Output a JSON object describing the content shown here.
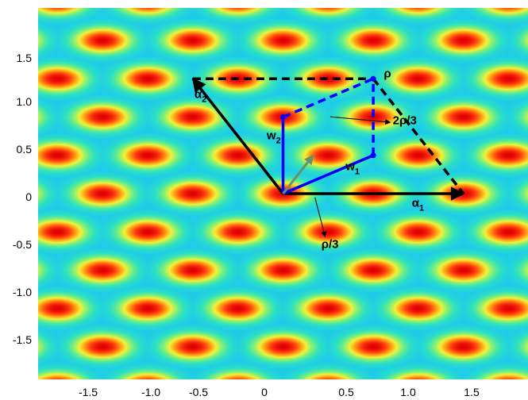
{
  "chart_data": {
    "type": "heatmap",
    "title": "",
    "xlabel": "",
    "ylabel": "",
    "xlim": [
      -1.92,
      1.92
    ],
    "ylim": [
      -1.98,
      1.98
    ],
    "grid": false,
    "x_ticks": [
      "-1.5",
      "-1.0",
      "-0.5",
      "0",
      "0.5",
      "1.0",
      "1.5"
    ],
    "y_ticks": [
      "1.5",
      "1.0",
      "0.5",
      "0",
      "-0.5",
      "-1.0",
      "-1.5"
    ],
    "colormap": [
      "#1cc7f2",
      "#2be0c4",
      "#7cf07a",
      "#f2f23a",
      "#ff9a12",
      "#ff3a10",
      "#e00000"
    ],
    "field": {
      "lattice_spacing_x": 0.707,
      "lattice_spacing_y": 0.4082,
      "lattice_offset_x": 0.3535
    },
    "vectors": [
      {
        "id": "alpha1",
        "from": [
          0,
          0
        ],
        "to": [
          1.414,
          0
        ],
        "color": "#000000",
        "style": "solid",
        "head": true
      },
      {
        "id": "alpha2",
        "from": [
          0,
          0
        ],
        "to": [
          -0.707,
          1.2247
        ],
        "color": "#000000",
        "style": "solid",
        "head": true
      },
      {
        "id": "w1",
        "from": [
          0,
          0
        ],
        "to": [
          0.707,
          0.4082
        ],
        "color": "#0000ff",
        "style": "solid",
        "head": false
      },
      {
        "id": "w2",
        "from": [
          0,
          0
        ],
        "to": [
          0,
          0.8165
        ],
        "color": "#0000ff",
        "style": "solid",
        "head": false
      },
      {
        "id": "rho-third",
        "from": [
          0,
          0
        ],
        "to": [
          0.236,
          0.4082
        ],
        "color": "#6b8f6b",
        "style": "solid",
        "head": true
      },
      {
        "id": "w1-to-rho",
        "from": [
          0.707,
          0.4082
        ],
        "to": [
          0.707,
          1.2247
        ],
        "color": "#0000ff",
        "style": "dashed",
        "head": false
      },
      {
        "id": "w2-to-rho",
        "from": [
          0,
          0.8165
        ],
        "to": [
          0.707,
          1.2247
        ],
        "color": "#0000ff",
        "style": "dashed",
        "head": false
      },
      {
        "id": "top-edge",
        "from": [
          -0.707,
          1.2247
        ],
        "to": [
          0.707,
          1.2247
        ],
        "color": "#000000",
        "style": "dashed",
        "head": false
      },
      {
        "id": "right-edge",
        "from": [
          0.707,
          1.2247
        ],
        "to": [
          1.414,
          0
        ],
        "color": "#000000",
        "style": "dashed",
        "head": false
      }
    ],
    "points": [
      {
        "id": "tip-w1",
        "x": 0.707,
        "y": 0.4082,
        "color": "#0000ff"
      },
      {
        "id": "tip-w2",
        "x": 0,
        "y": 0.8165,
        "color": "#0000ff"
      },
      {
        "id": "tip-rho",
        "x": 0.707,
        "y": 1.2247,
        "color": "#0000ff"
      }
    ],
    "leaders": [
      {
        "id": "leader-rho-third",
        "from": [
          0.25,
          -0.04
        ],
        "to": [
          0.33,
          -0.46
        ]
      },
      {
        "id": "leader-two-rho-third",
        "from": [
          0.37,
          0.82
        ],
        "to": [
          0.84,
          0.76
        ]
      }
    ],
    "annotations": [
      {
        "id": "label-alpha1",
        "text": "α",
        "sub": "1",
        "x": 1.01,
        "y": -0.14
      },
      {
        "id": "label-alpha2",
        "text": "α",
        "sub": "2",
        "x": -0.695,
        "y": 1.02
      },
      {
        "id": "label-w1",
        "text": "w",
        "sub": "1",
        "x": 0.49,
        "y": 0.25
      },
      {
        "id": "label-w2",
        "text": "w",
        "sub": "2",
        "x": -0.128,
        "y": 0.58
      },
      {
        "id": "label-rho",
        "text": "ρ",
        "sub": "",
        "x": 0.79,
        "y": 1.24
      },
      {
        "id": "label-rho-third",
        "text": "ρ/3",
        "sub": "",
        "x": 0.3,
        "y": -0.58
      },
      {
        "id": "label-two-rho-third",
        "text": "2ρ/3",
        "sub": "",
        "x": 0.86,
        "y": 0.74
      }
    ]
  }
}
